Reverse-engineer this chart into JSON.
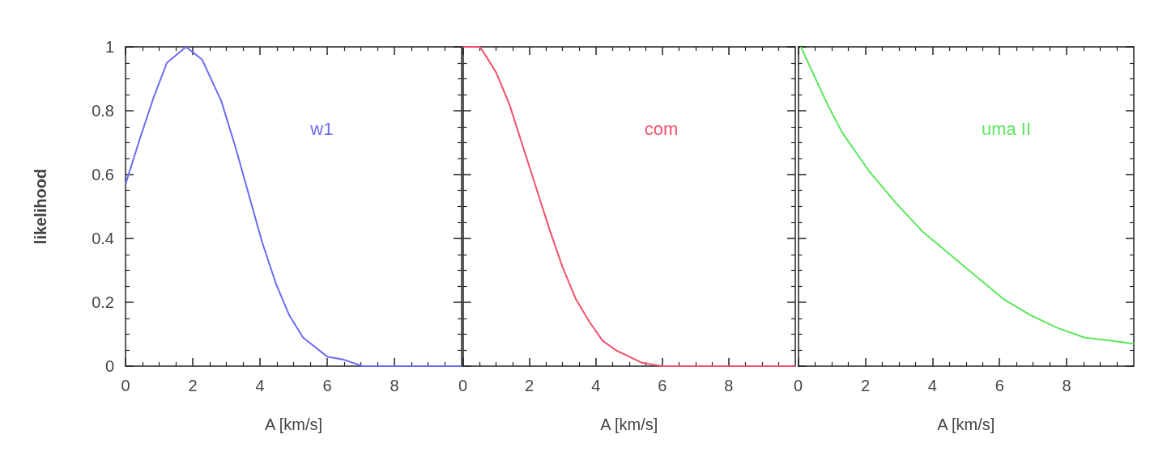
{
  "chart_data": [
    {
      "type": "line",
      "xlabel": "A [km/s]",
      "ylabel": "likelihood",
      "xlim": [
        0,
        10
      ],
      "xticks": [
        0,
        2,
        4,
        6,
        8
      ],
      "ylim": [
        0,
        1
      ],
      "yticks": [
        0,
        0.2,
        0.4,
        0.6,
        0.8,
        1
      ],
      "series": [
        {
          "name": "w1",
          "color": "#6b6bf0",
          "x": [
            0,
            0.42,
            0.83,
            1.23,
            1.8,
            2.28,
            2.85,
            3.26,
            3.66,
            4.06,
            4.47,
            4.87,
            5.28,
            6.0,
            6.5,
            7.06,
            8,
            9,
            10
          ],
          "values": [
            0.57,
            0.71,
            0.84,
            0.95,
            1,
            0.96,
            0.83,
            0.69,
            0.54,
            0.39,
            0.26,
            0.16,
            0.09,
            0.03,
            0.02,
            0,
            0,
            0,
            0
          ]
        }
      ]
    },
    {
      "type": "line",
      "xlabel": "A [km/s]",
      "xlim": [
        0,
        10
      ],
      "xticks": [
        0,
        2,
        4,
        6,
        8
      ],
      "ylim": [
        0,
        1
      ],
      "yticks": [
        0,
        0.2,
        0.4,
        0.6,
        0.8,
        1
      ],
      "tick_labels": "x",
      "series": [
        {
          "name": "com",
          "color": "#f0506a",
          "x": [
            0,
            0.52,
            1.0,
            1.4,
            1.8,
            2.2,
            2.6,
            3.0,
            3.4,
            3.8,
            4.2,
            4.6,
            5.0,
            5.4,
            6.0,
            7,
            8,
            9,
            10
          ],
          "values": [
            1,
            1,
            0.92,
            0.82,
            0.69,
            0.56,
            0.43,
            0.31,
            0.21,
            0.14,
            0.08,
            0.05,
            0.03,
            0.01,
            0,
            0,
            0,
            0,
            0
          ]
        }
      ]
    },
    {
      "type": "line",
      "xlabel": "A [km/s]",
      "xlim": [
        0,
        10
      ],
      "xticks": [
        0,
        2,
        4,
        6,
        8
      ],
      "ylim": [
        0,
        1
      ],
      "yticks": [
        0,
        0.2,
        0.4,
        0.6,
        0.8,
        1
      ],
      "tick_labels": "x",
      "series": [
        {
          "name": "uma II",
          "color": "#5ce65c",
          "x": [
            0.08,
            0.52,
            0.92,
            1.32,
            2.12,
            2.92,
            3.72,
            4.52,
            5.32,
            6.12,
            6.92,
            7.72,
            8.52,
            9.32,
            10
          ],
          "values": [
            1,
            0.9,
            0.81,
            0.73,
            0.61,
            0.51,
            0.42,
            0.35,
            0.28,
            0.21,
            0.16,
            0.12,
            0.09,
            0.08,
            0.07
          ]
        }
      ]
    }
  ]
}
